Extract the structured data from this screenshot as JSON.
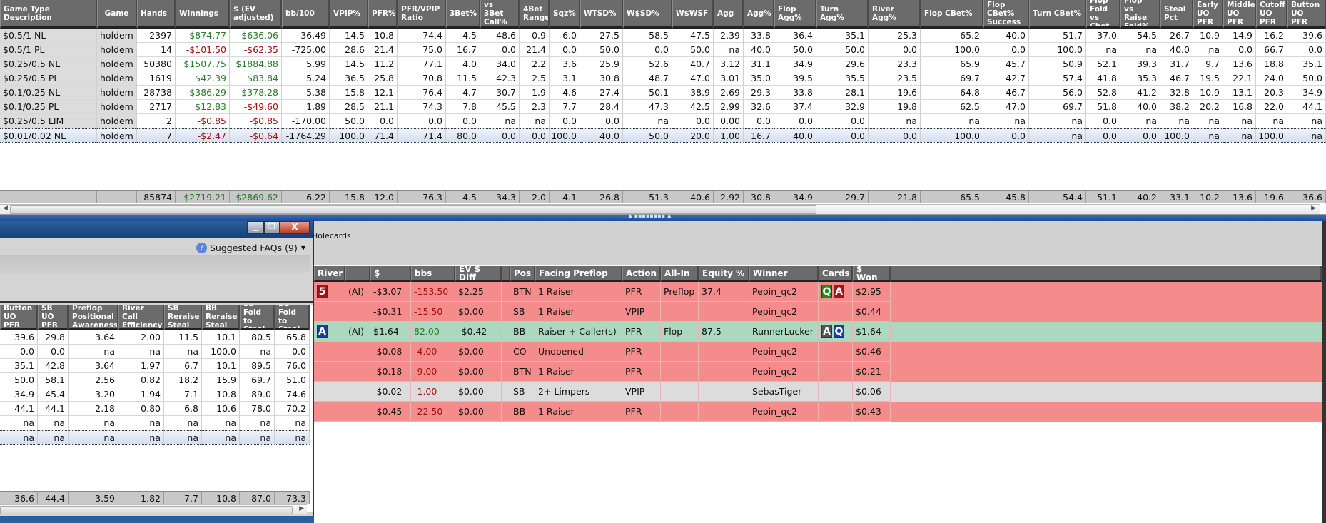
{
  "colors": {
    "header_bg": "#6b6b6b",
    "row_loss": "#f58c8c",
    "row_win": "#acd8c0",
    "row_neutral": "#dcdcdc",
    "positive": "#2a7a2a",
    "negative": "#a01010",
    "titlebar": "#1f4f8a"
  },
  "top_table": {
    "columns": [
      "Game Type Description",
      "Game",
      "Hands",
      "Winnings",
      "$ (EV\nadjusted)",
      "bb/100",
      "VPIP%",
      "PFR%",
      "PFR/VPIP\nRatio",
      "3Bet%",
      "vs 3Bet\nCall%",
      "4Bet\nRange",
      "Sqz%",
      "WTSD%",
      "W$SD%",
      "W$WSF",
      "Agg",
      "Agg%",
      "Flop Agg%",
      "Turn Agg%",
      "River Agg%",
      "Flop CBet%",
      "Flop CBet%\nSuccess",
      "Turn CBet%",
      "Flop\nFold\nvs Cbet",
      "Flop\nvs Raise\nFold%",
      "Steal\nPct",
      "Early\nUO\nPFR",
      "Middle\nUO\nPFR",
      "Cutoff\nUO\nPFR",
      "Button\nUO\nPFR"
    ],
    "rows": [
      [
        "$0.5/1 NL",
        "holdem",
        "2397",
        "$874.77",
        "$636.06",
        "36.49",
        "14.5",
        "10.8",
        "74.4",
        "4.5",
        "48.6",
        "0.9",
        "6.0",
        "27.5",
        "58.5",
        "47.5",
        "2.39",
        "33.8",
        "36.4",
        "35.1",
        "25.3",
        "65.2",
        "40.0",
        "51.7",
        "37.0",
        "54.5",
        "26.7",
        "10.9",
        "14.9",
        "16.2",
        "39.6"
      ],
      [
        "$0.5/1 PL",
        "holdem",
        "14",
        "-$101.50",
        "-$62.35",
        "-725.00",
        "28.6",
        "21.4",
        "75.0",
        "16.7",
        "0.0",
        "21.4",
        "0.0",
        "50.0",
        "0.0",
        "50.0",
        "na",
        "40.0",
        "50.0",
        "50.0",
        "0.0",
        "100.0",
        "0.0",
        "100.0",
        "na",
        "na",
        "40.0",
        "na",
        "0.0",
        "66.7",
        "0.0"
      ],
      [
        "$0.25/0.5 NL",
        "holdem",
        "50380",
        "$1507.75",
        "$1884.88",
        "5.99",
        "14.5",
        "11.2",
        "77.1",
        "4.0",
        "34.0",
        "2.2",
        "3.6",
        "25.9",
        "52.6",
        "40.7",
        "3.12",
        "31.1",
        "34.9",
        "29.6",
        "23.3",
        "65.9",
        "45.7",
        "50.9",
        "52.1",
        "39.3",
        "31.7",
        "9.7",
        "13.6",
        "18.8",
        "35.1"
      ],
      [
        "$0.25/0.5 PL",
        "holdem",
        "1619",
        "$42.39",
        "$83.84",
        "5.24",
        "36.5",
        "25.8",
        "70.8",
        "11.5",
        "42.3",
        "2.5",
        "3.1",
        "30.8",
        "48.7",
        "47.0",
        "3.01",
        "35.0",
        "39.5",
        "35.5",
        "23.5",
        "69.7",
        "42.7",
        "57.4",
        "41.8",
        "35.3",
        "46.7",
        "19.5",
        "22.1",
        "24.0",
        "50.0"
      ],
      [
        "$0.1/0.25 NL",
        "holdem",
        "28738",
        "$386.29",
        "$378.28",
        "5.38",
        "15.8",
        "12.1",
        "76.4",
        "4.7",
        "30.7",
        "1.9",
        "4.6",
        "27.4",
        "50.1",
        "38.9",
        "2.69",
        "29.3",
        "33.8",
        "28.1",
        "19.6",
        "64.8",
        "46.7",
        "56.0",
        "52.8",
        "41.2",
        "32.8",
        "10.9",
        "13.1",
        "20.3",
        "34.9"
      ],
      [
        "$0.1/0.25 PL",
        "holdem",
        "2717",
        "$12.83",
        "-$49.60",
        "1.89",
        "28.5",
        "21.1",
        "74.3",
        "7.8",
        "45.5",
        "2.3",
        "7.7",
        "28.4",
        "47.3",
        "42.5",
        "2.99",
        "32.6",
        "37.4",
        "32.9",
        "19.8",
        "62.5",
        "47.0",
        "69.7",
        "51.8",
        "40.0",
        "38.2",
        "20.2",
        "16.8",
        "22.0",
        "44.1"
      ],
      [
        "$0.25/0.5 LIM",
        "holdem",
        "2",
        "-$0.85",
        "-$0.85",
        "-170.00",
        "50.0",
        "0.0",
        "0.0",
        "0.0",
        "na",
        "na",
        "0.0",
        "0.0",
        "na",
        "0.0",
        "0.00",
        "0.0",
        "0.0",
        "0.0",
        "na",
        "na",
        "na",
        "na",
        "0.0",
        "na",
        "na",
        "na",
        "na",
        "na",
        "na"
      ],
      [
        "$0.01/0.02 NL",
        "holdem",
        "7",
        "-$2.47",
        "-$0.64",
        "-1764.29",
        "100.0",
        "71.4",
        "71.4",
        "80.0",
        "0.0",
        "0.0",
        "100.0",
        "40.0",
        "50.0",
        "20.0",
        "1.00",
        "16.7",
        "40.0",
        "0.0",
        "0.0",
        "100.0",
        "0.0",
        "na",
        "0.0",
        "0.0",
        "100.0",
        "na",
        "na",
        "100.0",
        "na"
      ]
    ],
    "selected_row": 7,
    "totals": [
      "",
      "",
      "85874",
      "$2719.21",
      "$2869.62",
      "6.22",
      "15.8",
      "12.0",
      "76.3",
      "4.5",
      "34.3",
      "2.0",
      "4.1",
      "26.8",
      "51.3",
      "40.6",
      "2.92",
      "30.8",
      "34.9",
      "29.7",
      "21.8",
      "65.5",
      "45.8",
      "54.4",
      "51.1",
      "40.2",
      "33.1",
      "10.2",
      "13.6",
      "19.6",
      "36.6"
    ]
  },
  "left_window": {
    "faq_label": "Suggested FAQs (9)",
    "columns": [
      "Button\nUO\nPFR",
      "SB\nUO\nPFR",
      "Preflop\nPositional\nAwareness",
      "River\nCall\nEfficiency",
      "SB\nReraise\nSteal",
      "BB\nReraise\nSteal",
      "SB\nFold to\nSteal",
      "BB\nFold to\nSteal"
    ],
    "rows": [
      [
        "39.6",
        "29.8",
        "3.64",
        "2.00",
        "11.5",
        "10.1",
        "80.5",
        "65.8"
      ],
      [
        "0.0",
        "0.0",
        "na",
        "na",
        "na",
        "100.0",
        "na",
        "0.0"
      ],
      [
        "35.1",
        "42.8",
        "3.64",
        "1.97",
        "6.7",
        "10.1",
        "89.5",
        "76.0"
      ],
      [
        "50.0",
        "58.1",
        "2.56",
        "0.82",
        "18.2",
        "15.9",
        "69.7",
        "51.0"
      ],
      [
        "34.9",
        "45.4",
        "3.20",
        "1.94",
        "7.1",
        "10.8",
        "89.0",
        "74.6"
      ],
      [
        "44.1",
        "44.1",
        "2.18",
        "0.80",
        "6.8",
        "10.6",
        "78.0",
        "70.2"
      ],
      [
        "na",
        "na",
        "na",
        "na",
        "na",
        "na",
        "na",
        "na"
      ],
      [
        "na",
        "na",
        "na",
        "na",
        "na",
        "na",
        "na",
        "na"
      ]
    ],
    "selected_row": 7,
    "totals": [
      "36.6",
      "44.4",
      "3.59",
      "1.82",
      "7.7",
      "10.8",
      "87.0",
      "73.3"
    ]
  },
  "hands_panel": {
    "title": "Holecards",
    "columns": [
      "River",
      "",
      "$",
      "bbs",
      "EV $ Diff",
      "",
      "Pos",
      "Facing Preflop",
      "Action",
      "All-In",
      "Equity %",
      "Winner",
      "Cards",
      "$ Won"
    ],
    "rows": [
      {
        "status": "loss",
        "river": {
          "rank": "5",
          "color": "#9a1818"
        },
        "ai": "(AI)",
        "cells": [
          "-$3.07",
          "-153.50",
          "$2.25",
          "",
          "BTN",
          "1 Raiser",
          "PFR",
          "Preflop",
          "37.4",
          "Pepin_qc2"
        ],
        "cards": [
          {
            "rank": "Q",
            "color": "#1e8a1e"
          },
          {
            "rank": "A",
            "color": "#9a1818"
          }
        ],
        "won": "$2.95"
      },
      {
        "status": "loss",
        "river": null,
        "ai": "",
        "cells": [
          "-$0.31",
          "-15.50",
          "$0.00",
          "",
          "SB",
          "1 Raiser",
          "VPIP",
          "",
          "",
          "Pepin_qc2"
        ],
        "cards": [],
        "won": "$0.44"
      },
      {
        "status": "win",
        "river": {
          "rank": "A",
          "color": "#1a3f9a"
        },
        "ai": "(AI)",
        "cells": [
          "$1.64",
          "82.00",
          "-$0.42",
          "",
          "BB",
          "Raiser + Caller(s)",
          "PFR",
          "Flop",
          "87.5",
          "RunnerLucker"
        ],
        "cards": [
          {
            "rank": "A",
            "color": "#555555"
          },
          {
            "rank": "Q",
            "color": "#1a3f9a"
          }
        ],
        "won": "$1.64"
      },
      {
        "status": "loss",
        "river": null,
        "ai": "",
        "cells": [
          "-$0.08",
          "-4.00",
          "$0.00",
          "",
          "CO",
          "Unopened",
          "PFR",
          "",
          "",
          "Pepin_qc2"
        ],
        "cards": [],
        "won": "$0.46"
      },
      {
        "status": "loss",
        "river": null,
        "ai": "",
        "cells": [
          "-$0.18",
          "-9.00",
          "$0.00",
          "",
          "BTN",
          "1 Raiser",
          "PFR",
          "",
          "",
          "Pepin_qc2"
        ],
        "cards": [],
        "won": "$0.21"
      },
      {
        "status": "neutral",
        "river": null,
        "ai": "",
        "cells": [
          "-$0.02",
          "-1.00",
          "$0.00",
          "",
          "SB",
          "2+ Limpers",
          "VPIP",
          "",
          "",
          "SebasTiger"
        ],
        "cards": [],
        "won": "$0.06"
      },
      {
        "status": "loss",
        "river": null,
        "ai": "",
        "cells": [
          "-$0.45",
          "-22.50",
          "$0.00",
          "",
          "BB",
          "1 Raiser",
          "PFR",
          "",
          "",
          "Pepin_qc2"
        ],
        "cards": [],
        "won": "$0.43"
      }
    ]
  }
}
